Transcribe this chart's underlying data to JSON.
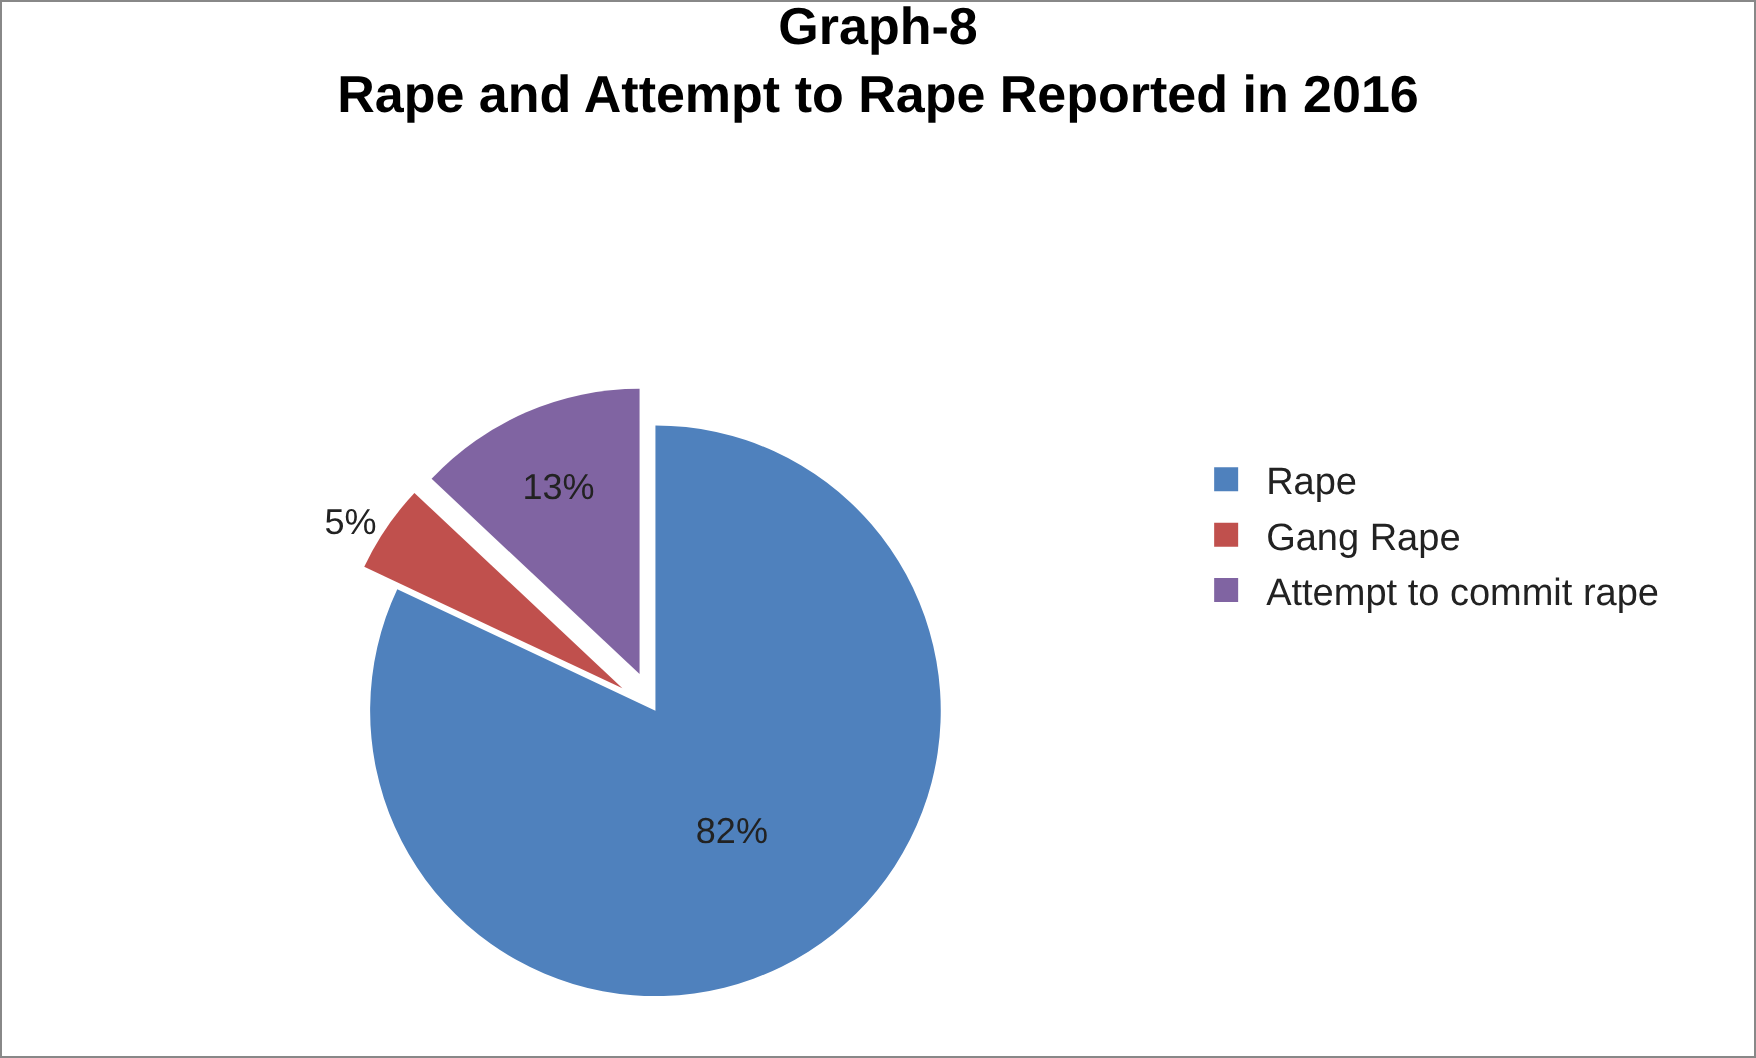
{
  "chart_data": {
    "type": "pie",
    "title": "Graph-8\nRape and Attempt to Rape Reported in 2016",
    "categories": [
      "Rape",
      "Gang Rape",
      "Attempt to commit rape"
    ],
    "values": [
      82,
      5,
      13
    ],
    "colors": [
      "#4f81bd",
      "#c0504d",
      "#8064a2"
    ],
    "value_labels": [
      "82%",
      "5%",
      "13%"
    ],
    "legend": "right"
  }
}
